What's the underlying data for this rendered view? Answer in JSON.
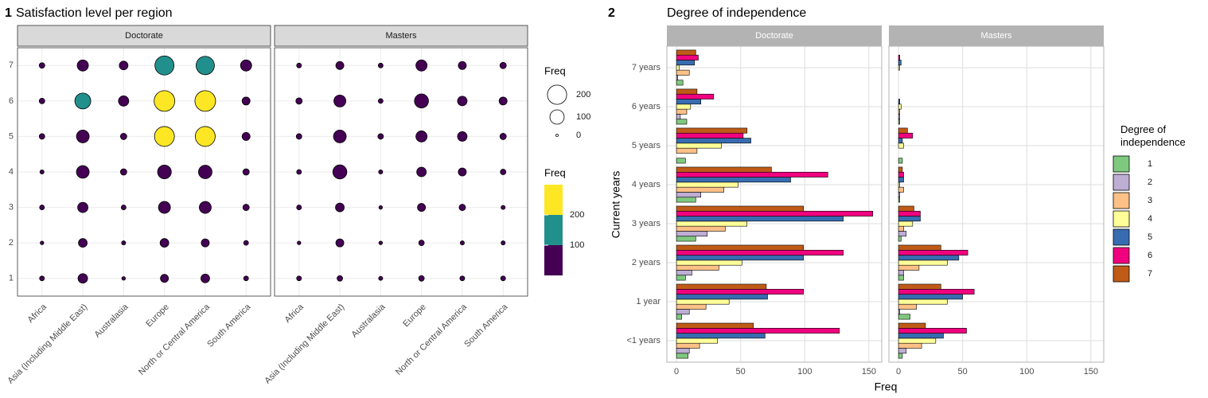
{
  "chart_data": [
    {
      "type": "scatter",
      "panel_label": "1",
      "title": "Satisfaction level per region",
      "categories": [
        "Africa",
        "Asia (Including Middle East)",
        "Australasia",
        "Europe",
        "North or Central America",
        "South America"
      ],
      "ylim": [
        0.5,
        7.5
      ],
      "yticks": [
        1,
        2,
        3,
        4,
        5,
        6,
        7
      ],
      "facets": [
        {
          "name": "Doctorate",
          "values": [
            [
              4,
              1,
              4,
              2,
              7,
              7,
              7
            ],
            [
              36,
              28,
              44,
              75,
              75,
              128,
              54
            ],
            [
              1,
              2,
              4,
              11,
              11,
              44,
              28
            ],
            [
              22,
              28,
              64,
              90,
              215,
              235,
              196
            ],
            [
              28,
              22,
              64,
              87,
              215,
              235,
              178
            ],
            [
              4,
              4,
              11,
              11,
              22,
              22,
              54
            ]
          ]
        },
        {
          "name": "Masters",
          "values": [
            [
              4,
              1,
              4,
              4,
              7,
              11,
              4
            ],
            [
              7,
              22,
              28,
              95,
              75,
              64,
              22
            ],
            [
              2,
              1,
              1,
              2,
              7,
              4,
              4
            ],
            [
              7,
              7,
              22,
              36,
              54,
              95,
              54
            ],
            [
              4,
              2,
              11,
              22,
              36,
              36,
              22
            ],
            [
              4,
              2,
              2,
              7,
              11,
              22,
              11
            ]
          ]
        }
      ],
      "size_legend": {
        "title": "Freq",
        "breaks": [
          200,
          100,
          0
        ]
      },
      "color_legend": {
        "title": "Freq",
        "breaks": [
          100,
          200
        ],
        "colors": [
          "#440154",
          "#21908c",
          "#fde725"
        ]
      }
    },
    {
      "type": "bar",
      "panel_label": "2",
      "title": "Degree of independence",
      "x_label": "Freq",
      "y_label": "Current years",
      "categories": [
        "<1 years",
        "1 year",
        "2 years",
        "3 years",
        "4 years",
        "5 years",
        "6 years",
        "7 years"
      ],
      "xlim": [
        -7.5,
        160
      ],
      "xticks": [
        0,
        50,
        100,
        150
      ],
      "legend_title": "Degree of independence",
      "facets": [
        {
          "name": "Doctorate",
          "series": [
            {
              "name": "1",
              "color": "#7fc97f",
              "values": [
                9,
                4,
                7,
                15,
                15,
                7,
                8,
                5
              ]
            },
            {
              "name": "2",
              "color": "#beaed4",
              "values": [
                10,
                10,
                12,
                24,
                19,
                0,
                3,
                1
              ]
            },
            {
              "name": "3",
              "color": "#fdc086",
              "values": [
                18,
                23,
                33,
                38,
                37,
                16,
                8,
                10
              ]
            },
            {
              "name": "4",
              "color": "#ffff99",
              "values": [
                32,
                41,
                51,
                55,
                48,
                35,
                11,
                2
              ]
            },
            {
              "name": "5",
              "color": "#386cb0",
              "values": [
                69,
                71,
                99,
                130,
                89,
                58,
                19,
                14
              ]
            },
            {
              "name": "6",
              "color": "#f0027f",
              "values": [
                127,
                99,
                130,
                153,
                118,
                52,
                29,
                17
              ]
            },
            {
              "name": "7",
              "color": "#bf5b17",
              "values": [
                60,
                70,
                99,
                99,
                74,
                55,
                16,
                15
              ]
            }
          ]
        },
        {
          "name": "Masters",
          "series": [
            {
              "name": "1",
              "color": "#7fc97f",
              "values": [
                3,
                9,
                4,
                2,
                1,
                3,
                1,
                0
              ]
            },
            {
              "name": "2",
              "color": "#beaed4",
              "values": [
                6,
                1,
                4,
                6,
                1,
                0,
                1,
                0
              ]
            },
            {
              "name": "3",
              "color": "#fdc086",
              "values": [
                18,
                14,
                16,
                4,
                4,
                0,
                1,
                0
              ]
            },
            {
              "name": "4",
              "color": "#ffff99",
              "values": [
                29,
                38,
                38,
                11,
                1,
                4,
                2,
                1
              ]
            },
            {
              "name": "5",
              "color": "#386cb0",
              "values": [
                35,
                50,
                47,
                17,
                4,
                3,
                1,
                2
              ]
            },
            {
              "name": "6",
              "color": "#f0027f",
              "values": [
                53,
                59,
                54,
                17,
                4,
                11,
                0,
                1
              ]
            },
            {
              "name": "7",
              "color": "#bf5b17",
              "values": [
                21,
                33,
                33,
                12,
                3,
                7,
                0,
                0
              ]
            }
          ]
        }
      ]
    }
  ]
}
